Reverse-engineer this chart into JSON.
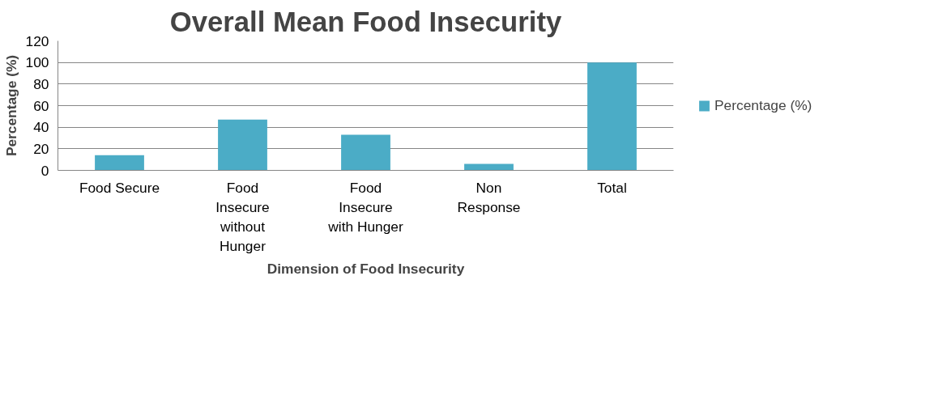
{
  "chart_data": {
    "type": "bar",
    "title": "Overall Mean Food Insecurity",
    "xlabel": "Dimension of Food Insecurity",
    "ylabel": "Percentage (%)",
    "categories": [
      "Food Secure",
      "Food Insecure without Hunger",
      "Food Insecure with Hunger",
      "Non Response",
      "Total"
    ],
    "series": [
      {
        "name": "Percentage (%)",
        "color": "#4bacc6",
        "values": [
          14,
          47,
          33,
          6,
          100
        ]
      }
    ],
    "ylim": [
      0,
      120
    ],
    "yticks": [
      0,
      20,
      40,
      60,
      80,
      100,
      120
    ],
    "grid": "y",
    "legend": "right"
  }
}
